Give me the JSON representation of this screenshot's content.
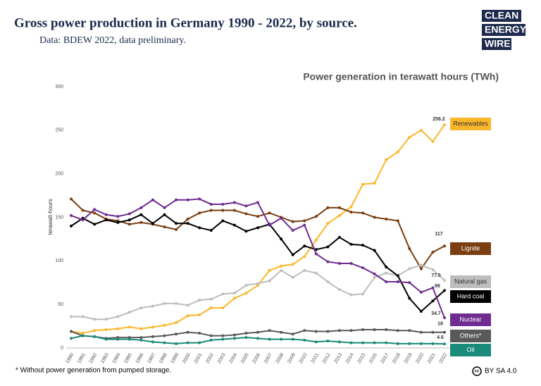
{
  "header": {
    "title": "Gross power production in Germany 1990 - 2022, by source.",
    "subtitle": "Data: BDEW 2022, data preliminary.",
    "logo": [
      "CLEAN",
      "ENERGY",
      "WIRE"
    ]
  },
  "chart_data": {
    "type": "line",
    "title": "Power generation in terawatt hours (TWh)",
    "y_label": "terawatt-hours",
    "categories": [
      "1990",
      "1991",
      "1992",
      "1993",
      "1994",
      "1995",
      "1996",
      "1997",
      "1998",
      "1999",
      "2000",
      "2001",
      "2002",
      "2003",
      "2004",
      "2005",
      "2006",
      "2007",
      "2008",
      "2009",
      "2010",
      "2011",
      "2012",
      "2013",
      "2014",
      "2015",
      "2016",
      "2017",
      "2018",
      "2019",
      "2020",
      "2021",
      "2022"
    ],
    "ylim": [
      0,
      300
    ],
    "yticks": [
      0,
      50,
      100,
      150,
      200,
      250,
      300
    ],
    "grid": false,
    "series": [
      {
        "name": "Renewables",
        "color": "#fbb72a",
        "values": [
          19,
          17,
          20,
          21,
          22,
          24,
          22,
          24,
          26,
          29,
          37,
          38,
          46,
          46,
          57,
          63,
          72,
          89,
          94,
          96,
          105,
          124,
          143,
          152,
          162,
          188,
          189,
          216,
          225,
          242,
          250,
          237,
          256.2
        ]
      },
      {
        "name": "Lignite",
        "color": "#7a3e10",
        "values": [
          171,
          158,
          155,
          148,
          146,
          142,
          144,
          142,
          139,
          136,
          148,
          155,
          158,
          158,
          158,
          154,
          151,
          155,
          150,
          145,
          146,
          151,
          161,
          161,
          156,
          155,
          150,
          148,
          146,
          114,
          91,
          110,
          117
        ]
      },
      {
        "name": "Natural gas",
        "color": "#bdbdbd",
        "values": [
          36,
          36,
          33,
          33,
          36,
          41,
          46,
          48,
          51,
          51,
          49,
          55,
          56,
          62,
          63,
          72,
          74,
          77,
          89,
          81,
          89,
          86,
          76,
          67,
          61,
          62,
          81,
          86,
          83,
          91,
          95,
          90,
          77.5
        ]
      },
      {
        "name": "Hard coal",
        "color": "#000000",
        "values": [
          140,
          149,
          142,
          147,
          144,
          147,
          153,
          143,
          153,
          143,
          143,
          138,
          135,
          146,
          141,
          134,
          138,
          142,
          125,
          107,
          117,
          113,
          116,
          127,
          119,
          118,
          112,
          93,
          83,
          57,
          42,
          54,
          66
        ]
      },
      {
        "name": "Nuclear",
        "color": "#6f2c91",
        "values": [
          152,
          147,
          159,
          153,
          151,
          154,
          161,
          170,
          161,
          170,
          170,
          171,
          165,
          165,
          167,
          163,
          167,
          141,
          149,
          135,
          141,
          108,
          99,
          97,
          97,
          92,
          85,
          76,
          76,
          75,
          64,
          69,
          34.7
        ]
      },
      {
        "name": "Others*",
        "color": "#595959",
        "values": [
          19,
          14,
          13,
          11,
          12,
          12,
          12,
          13,
          14,
          16,
          18,
          17,
          14,
          14,
          15,
          17,
          18,
          20,
          18,
          16,
          20,
          19,
          19,
          20,
          20,
          21,
          21,
          21,
          20,
          20,
          18,
          18,
          18
        ]
      },
      {
        "name": "Oil",
        "color": "#1a8a7a",
        "values": [
          11,
          14,
          13,
          10,
          10,
          10,
          9,
          7,
          6,
          5,
          6,
          6,
          9,
          10,
          11,
          12,
          11,
          10,
          10,
          10,
          9,
          7,
          8,
          7,
          6,
          6,
          6,
          6,
          5,
          5,
          5,
          5,
          4.6
        ]
      }
    ]
  },
  "footer": {
    "note": "* Without power generation from pumped storage.",
    "cc": "cc",
    "license": "BY SA 4.0"
  }
}
